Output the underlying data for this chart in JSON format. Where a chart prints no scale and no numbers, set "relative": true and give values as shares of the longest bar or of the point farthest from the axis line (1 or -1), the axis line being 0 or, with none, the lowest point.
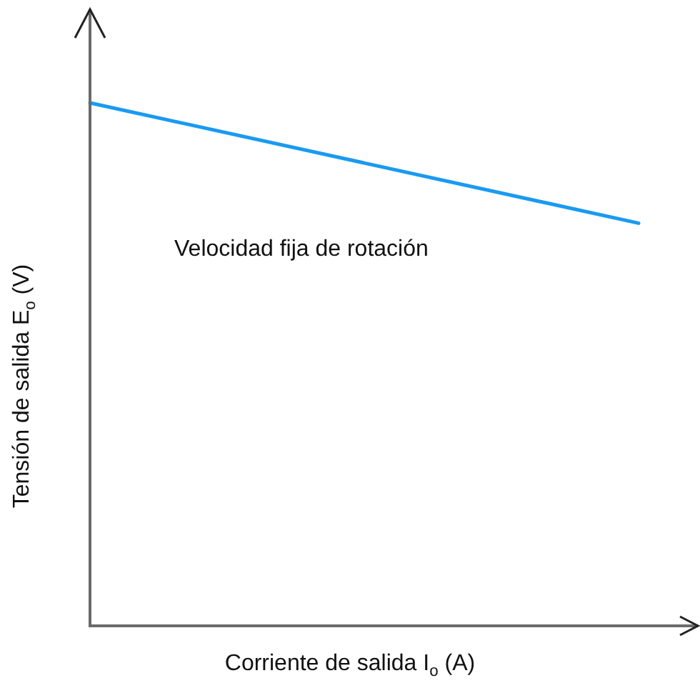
{
  "chart_data": {
    "type": "line",
    "xlabel": "Corriente de salida I$_{o}$ (A)",
    "ylabel": "Tensión de salida E$_{o}$ (V)",
    "annotations": [
      "Velocidad fija de rotación"
    ],
    "categories": [
      null,
      null
    ],
    "values": [
      1,
      0.77
    ],
    "color": "#1a9af0",
    "relative": true
  }
}
